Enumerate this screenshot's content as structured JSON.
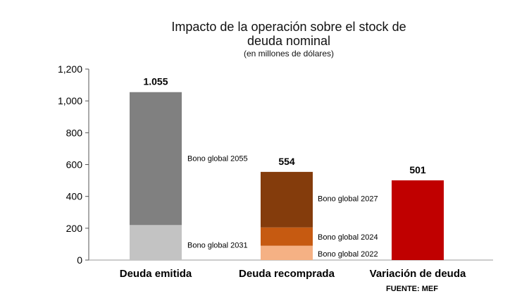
{
  "chart_data": {
    "type": "bar",
    "title": "Impacto de la operación sobre el stock de deuda nominal",
    "title_lines": [
      "Impacto de la operación sobre el stock de",
      "deuda nominal"
    ],
    "subtitle": "(en millones de dólares)",
    "categories": [
      "Deuda emitida",
      "Deuda recomprada",
      "Variación de deuda"
    ],
    "ylim": [
      0,
      1200
    ],
    "yticks": [
      "0",
      "200",
      "400",
      "600",
      "800",
      "1,000",
      "1,200"
    ],
    "ytick_values": [
      0,
      200,
      400,
      600,
      800,
      1000,
      1200
    ],
    "grid": false,
    "totals": [
      "1.055",
      "554",
      "501"
    ],
    "stacks": [
      [
        {
          "name": "",
          "value": 220,
          "color": "#c3c3c3"
        },
        {
          "name": "Bono global 2055",
          "value": 835,
          "color": "#808080"
        }
      ],
      [
        {
          "name": "Bono global 2022",
          "value": 90,
          "color": "#f5b184"
        },
        {
          "name": "Bono global 2024",
          "value": 115,
          "color": "#c65a11"
        },
        {
          "name": "Bono global 2027",
          "value": 349,
          "color": "#843c0c"
        }
      ],
      [
        {
          "name": "",
          "value": 501,
          "color": "#c00000"
        }
      ]
    ],
    "segment_labels": [
      {
        "text": "Bono global 2055",
        "bar": 0
      },
      {
        "text": "Bono global 2031",
        "bar": 0
      },
      {
        "text": "Bono global 2027",
        "bar": 1
      },
      {
        "text": "Bono global 2024",
        "bar": 1
      },
      {
        "text": "Bono global 2022",
        "bar": 1
      }
    ]
  },
  "source": "FUENTE: MEF"
}
